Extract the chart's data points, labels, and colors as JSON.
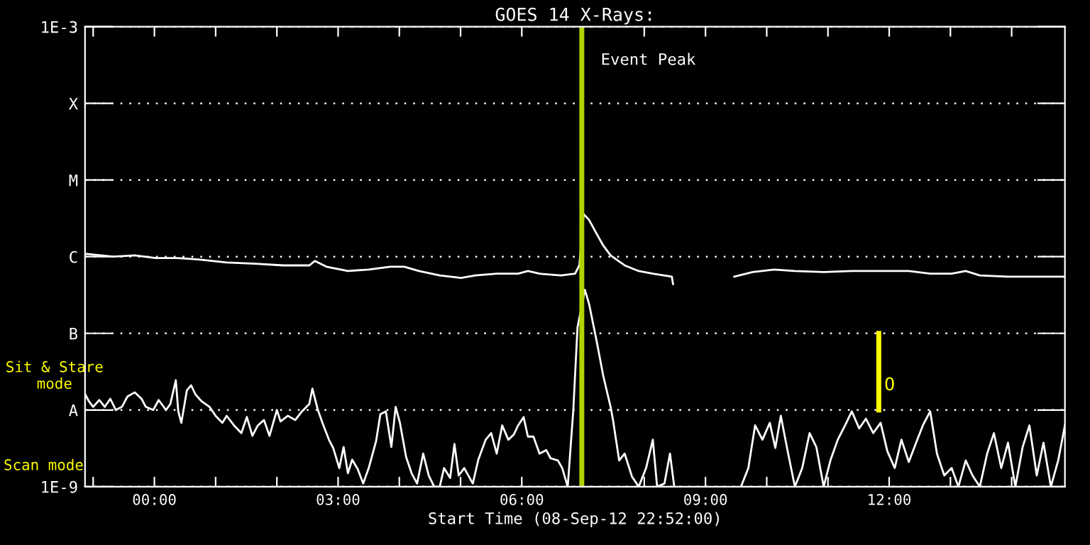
{
  "chart_data": {
    "type": "line",
    "title": "GOES 14 X-Rays:",
    "xlabel": "Start Time (08-Sep-12 22:52:00)",
    "log": true,
    "grid": "y",
    "line_style": "solid",
    "marker": "none",
    "xlim": [
      -1.133,
      14.87
    ],
    "xticks": [
      {
        "value": -1,
        "label": null
      },
      {
        "value": 0,
        "label": "00:00"
      },
      {
        "value": 1,
        "label": null
      },
      {
        "value": 2,
        "label": null
      },
      {
        "value": 3,
        "label": "03:00"
      },
      {
        "value": 4,
        "label": null
      },
      {
        "value": 5,
        "label": null
      },
      {
        "value": 6,
        "label": "06:00"
      },
      {
        "value": 7,
        "label": null
      },
      {
        "value": 8,
        "label": null
      },
      {
        "value": 9,
        "label": "09:00"
      },
      {
        "value": 10,
        "label": null
      },
      {
        "value": 11,
        "label": null
      },
      {
        "value": 12,
        "label": "12:00"
      },
      {
        "value": 13,
        "label": null
      },
      {
        "value": 14,
        "label": null
      }
    ],
    "ylim": [
      1e-09,
      0.001
    ],
    "yticks": [
      {
        "value": 1e-09,
        "label": "1E-9"
      },
      {
        "value": 1e-08,
        "label": "A"
      },
      {
        "value": 1e-07,
        "label": "B"
      },
      {
        "value": 1e-06,
        "label": "C"
      },
      {
        "value": 1e-05,
        "label": "M"
      },
      {
        "value": 0.0001,
        "label": "X"
      },
      {
        "value": 0.001,
        "label": "1E-3"
      }
    ],
    "series": [
      {
        "color": "#ffffff",
        "x": [
          -1.13,
          -0.67,
          -0.32,
          0.02,
          0.37,
          0.72,
          1.18,
          1.65,
          2.11,
          2.53,
          2.62,
          2.81,
          3.16,
          3.5,
          3.85,
          4.08,
          4.32,
          4.66,
          5.01,
          5.24,
          5.59,
          5.94,
          6.1,
          6.29,
          6.64,
          6.87,
          6.94,
          7.01,
          7.1,
          7.22,
          7.33,
          7.45,
          7.68,
          7.91,
          8.14,
          8.45,
          8.47,
          8.8,
          9.47,
          9.77,
          10.12,
          10.46,
          10.93,
          11.39,
          11.86,
          12.32,
          12.67,
          13.02,
          13.25,
          13.48,
          13.94,
          14.41,
          14.87
        ],
        "values": [
          1.09e-06,
          1e-06,
          1.04e-06,
          9.6e-07,
          9.6e-07,
          9.2e-07,
          8.4e-07,
          8.1e-07,
          7.7e-07,
          7.7e-07,
          8.8e-07,
          7.4e-07,
          6.5e-07,
          6.8e-07,
          7.4e-07,
          7.4e-07,
          6.5e-07,
          5.7e-07,
          5.3e-07,
          5.7e-07,
          6e-07,
          6e-07,
          6.5e-07,
          6e-07,
          5.7e-07,
          6e-07,
          7.7e-07,
          3.6e-06,
          3e-06,
          2e-06,
          1.4e-06,
          1.04e-06,
          7.7e-07,
          6.5e-07,
          6e-07,
          5.5e-07,
          4.4e-07,
          null,
          5.5e-07,
          6.3e-07,
          6.8e-07,
          6.5e-07,
          6.3e-07,
          6.5e-07,
          6.5e-07,
          6.5e-07,
          6e-07,
          6e-07,
          6.5e-07,
          5.7e-07,
          5.5e-07,
          5.5e-07,
          5.5e-07
        ]
      },
      {
        "color": "#ffffff",
        "x": [
          -1.13,
          -1.07,
          -1.0,
          -0.9,
          -0.81,
          -0.72,
          -0.63,
          -0.53,
          -0.44,
          -0.32,
          -0.21,
          -0.14,
          -0.02,
          0.07,
          0.19,
          0.26,
          0.35,
          0.39,
          0.44,
          0.53,
          0.6,
          0.67,
          0.77,
          0.9,
          1.0,
          1.11,
          1.18,
          1.3,
          1.42,
          1.51,
          1.6,
          1.69,
          1.79,
          1.88,
          2.0,
          2.06,
          2.18,
          2.3,
          2.41,
          2.53,
          2.58,
          2.67,
          2.76,
          2.85,
          2.92,
          3.02,
          3.09,
          3.16,
          3.23,
          3.32,
          3.41,
          3.5,
          3.62,
          3.69,
          3.78,
          3.87,
          3.94,
          4.01,
          4.11,
          4.2,
          4.29,
          4.39,
          4.48,
          4.57,
          4.66,
          4.73,
          4.83,
          4.9,
          4.97,
          5.06,
          5.2,
          5.29,
          5.41,
          5.5,
          5.59,
          5.68,
          5.78,
          5.87,
          5.94,
          6.03,
          6.1,
          6.19,
          6.29,
          6.4,
          6.47,
          6.59,
          6.66,
          6.75,
          6.84,
          6.91,
          7.03,
          7.1,
          7.22,
          7.33,
          7.45,
          7.49,
          7.59,
          7.68,
          7.8,
          7.91,
          8.03,
          8.14,
          8.21,
          8.33,
          8.42,
          8.49,
          8.9,
          9.58,
          9.7,
          9.81,
          9.93,
          10.05,
          10.14,
          10.23,
          10.35,
          10.46,
          10.58,
          10.7,
          10.81,
          10.93,
          11.04,
          11.16,
          11.28,
          11.39,
          11.51,
          11.62,
          11.74,
          11.86,
          11.97,
          12.09,
          12.2,
          12.32,
          12.44,
          12.55,
          12.67,
          12.78,
          12.9,
          13.02,
          13.13,
          13.25,
          13.36,
          13.48,
          13.6,
          13.71,
          13.83,
          13.94,
          14.06,
          14.18,
          14.29,
          14.41,
          14.52,
          14.64,
          14.76,
          14.87
        ],
        "values": [
          1.6e-08,
          1.3e-08,
          1.1e-08,
          1.35e-08,
          1.1e-08,
          1.4e-08,
          1e-08,
          1.1e-08,
          1.5e-08,
          1.7e-08,
          1.4e-08,
          1.1e-08,
          1e-08,
          1.35e-08,
          1e-08,
          1.2e-08,
          2.45e-08,
          9.6e-09,
          6.8e-09,
          1.8e-08,
          2.1e-08,
          1.6e-08,
          1.3e-08,
          1.1e-08,
          8.4e-09,
          6.8e-09,
          8.4e-09,
          6.3e-09,
          5e-09,
          8.1e-09,
          4.6e-09,
          6.3e-09,
          7.4e-09,
          4.6e-09,
          1e-08,
          7.1e-09,
          8.4e-09,
          7.4e-09,
          9.6e-09,
          1.2e-08,
          1.9e-08,
          1e-08,
          6.3e-09,
          4.1e-09,
          3.2e-09,
          1.75e-09,
          3.3e-09,
          1.5e-09,
          2.25e-09,
          1.7e-09,
          1.1e-09,
          1.75e-09,
          3.9e-09,
          8.8e-09,
          9.6e-09,
          3.3e-09,
          1.1e-08,
          6.8e-09,
          2.45e-09,
          1.5e-09,
          1.1e-09,
          2.7e-09,
          1.4e-09,
          1e-09,
          1e-09,
          1.75e-09,
          1.3e-09,
          3.6e-09,
          1.4e-09,
          1.75e-09,
          1.1e-09,
          2.25e-09,
          4.1e-09,
          5e-09,
          2.7e-09,
          6.3e-09,
          4.1e-09,
          4.8e-09,
          6.3e-09,
          8.1e-09,
          4.5e-09,
          4.5e-09,
          2.7e-09,
          3e-09,
          2.35e-09,
          2.2e-09,
          1.75e-09,
          1e-09,
          9.6e-09,
          1.2e-07,
          3.7e-07,
          2.4e-07,
          8.1e-08,
          2.8e-08,
          1.1e-08,
          7.4e-09,
          2.2e-09,
          2.7e-09,
          1.35e-09,
          1e-09,
          1.75e-09,
          4.1e-09,
          1e-09,
          1.1e-09,
          2.7e-09,
          1e-09,
          null,
          1e-09,
          1.75e-09,
          6.3e-09,
          4.1e-09,
          6.8e-09,
          3.2e-09,
          8.4e-09,
          2.7e-09,
          1e-09,
          1.75e-09,
          5e-09,
          3.3e-09,
          1e-09,
          2.2e-09,
          4.1e-09,
          6.3e-09,
          9.6e-09,
          5.75e-09,
          7.7e-09,
          5e-09,
          6.8e-09,
          2.9e-09,
          1.75e-09,
          4.1e-09,
          2.1e-09,
          3.75e-09,
          6.3e-09,
          9.6e-09,
          2.7e-09,
          1.4e-09,
          1.75e-09,
          1e-09,
          2.2e-09,
          1.4e-09,
          1e-09,
          2.7e-09,
          5e-09,
          1.75e-09,
          3.75e-09,
          1e-09,
          3.3e-09,
          6.3e-09,
          1.4e-09,
          3.75e-09,
          1e-09,
          2.2e-09,
          6.3e-09
        ]
      },
      {
        "color": "#ffff00",
        "x": [
          11.83,
          11.83
        ],
        "values": [
          1e-08,
          1e-07
        ]
      }
    ],
    "ref_lines": [
      {
        "axis": "x",
        "value": 6.98,
        "label": "Event Peak",
        "color": "#b0d400"
      }
    ],
    "annotations": [
      "Sit & Stare\nmode",
      "Scan mode",
      {
        "text": "O",
        "x": 11.92,
        "y": 2.1e-08
      }
    ]
  }
}
